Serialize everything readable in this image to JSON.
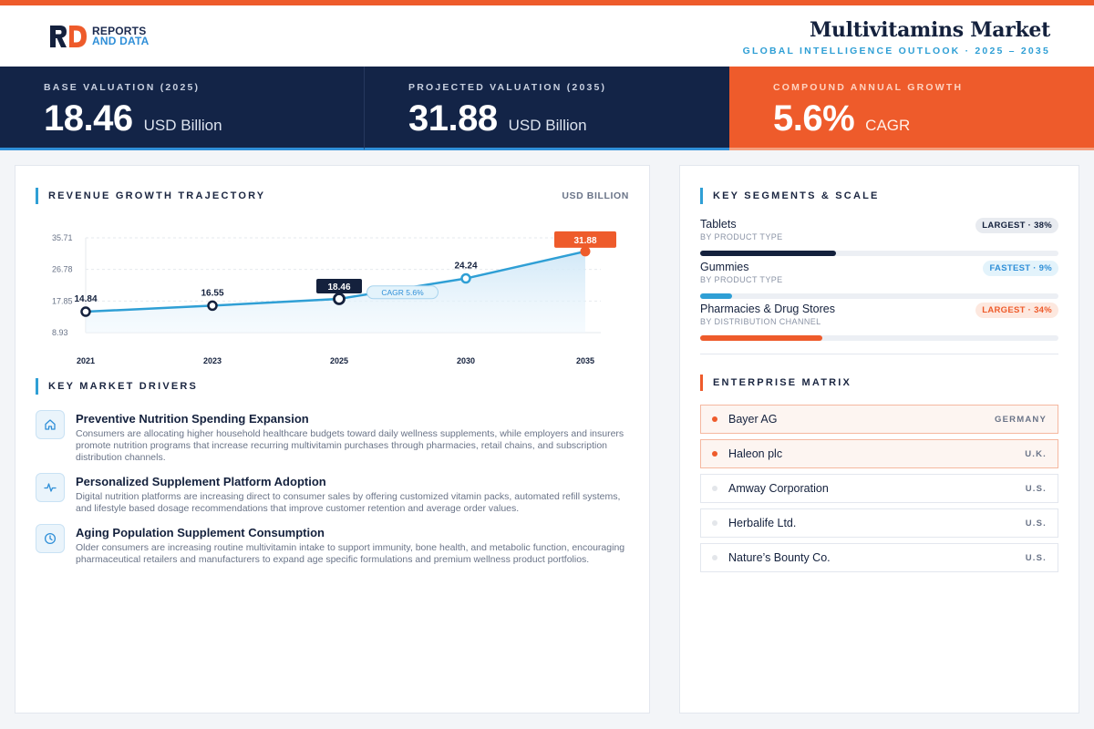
{
  "brand": {
    "line1": "REPORTS",
    "line2": "AND DATA"
  },
  "header": {
    "title": "Multivitamins Market",
    "subtitle": "GLOBAL INTELLIGENCE OUTLOOK · 2025 – 2035"
  },
  "stats": [
    {
      "label": "BASE VALUATION (2025)",
      "value": "18.46",
      "unit": "USD Billion"
    },
    {
      "label": "PROJECTED VALUATION (2035)",
      "value": "31.88",
      "unit": "USD Billion"
    },
    {
      "label": "COMPOUND ANNUAL GROWTH",
      "value": "5.6%",
      "unit": "CAGR"
    }
  ],
  "revenue": {
    "title": "REVENUE GROWTH TRAJECTORY",
    "unit_note": "USD BILLION",
    "cagr_label": "CAGR 5.6%"
  },
  "chart_data": {
    "type": "area",
    "categories": [
      "2021",
      "2023",
      "2025",
      "2030",
      "2035"
    ],
    "values": [
      14.84,
      16.55,
      18.46,
      24.24,
      31.88
    ],
    "value_labels": [
      "14.84",
      "16.55",
      "18.46",
      "24.24",
      "31.88"
    ],
    "yticks": [
      "35.71",
      "26.78",
      "17.85",
      "8.93"
    ],
    "ytick_values": [
      35.71,
      26.78,
      17.85,
      8.93
    ],
    "ylim": [
      8.93,
      35.71
    ],
    "highlight_index": 2,
    "final_index": 4,
    "colors": {
      "line": "#2f9fd5",
      "highlight": "#14213d",
      "final": "#ee5b2b"
    },
    "grid": true
  },
  "drivers": {
    "title": "KEY MARKET DRIVERS",
    "items": [
      {
        "icon": "home-icon",
        "title": "Preventive Nutrition Spending Expansion",
        "desc": "Consumers are allocating higher household healthcare budgets toward daily wellness supplements, while employers and insurers promote nutrition programs that increase recurring multivitamin purchases through pharmacies, retail chains, and subscription distribution channels."
      },
      {
        "icon": "activity-icon",
        "title": "Personalized Supplement Platform Adoption",
        "desc": "Digital nutrition platforms are increasing direct to consumer sales by offering customized vitamin packs, automated refill systems, and lifestyle based dosage recommendations that improve customer retention and average order values."
      },
      {
        "icon": "clock-icon",
        "title": "Aging Population Supplement Consumption",
        "desc": "Older consumers are increasing routine multivitamin intake to support immunity, bone health, and metabolic function, encouraging pharmaceutical retailers and manufacturers to expand age specific formulations and premium wellness product portfolios."
      }
    ]
  },
  "segments": {
    "title": "KEY SEGMENTS & SCALE",
    "items": [
      {
        "name": "Tablets",
        "category": "BY PRODUCT TYPE",
        "badge": "LARGEST · 38%",
        "share": 0.38,
        "color": "#14213d"
      },
      {
        "name": "Gummies",
        "category": "BY PRODUCT TYPE",
        "badge": "FASTEST · 9%",
        "share": 0.09,
        "color": "#2f9fd5"
      },
      {
        "name": "Pharmacies & Drug Stores",
        "category": "BY DISTRIBUTION CHANNEL",
        "badge": "LARGEST · 34%",
        "share": 0.34,
        "color": "#ee5b2b"
      }
    ]
  },
  "enterprise": {
    "title": "ENTERPRISE MATRIX",
    "items": [
      {
        "name": "Bayer AG",
        "country": "GERMANY"
      },
      {
        "name": "Haleon plc",
        "country": "U.K."
      },
      {
        "name": "Amway Corporation",
        "country": "U.S."
      },
      {
        "name": "Herbalife Ltd.",
        "country": "U.S."
      },
      {
        "name": "Nature’s Bounty Co.",
        "country": "U.S."
      }
    ]
  }
}
